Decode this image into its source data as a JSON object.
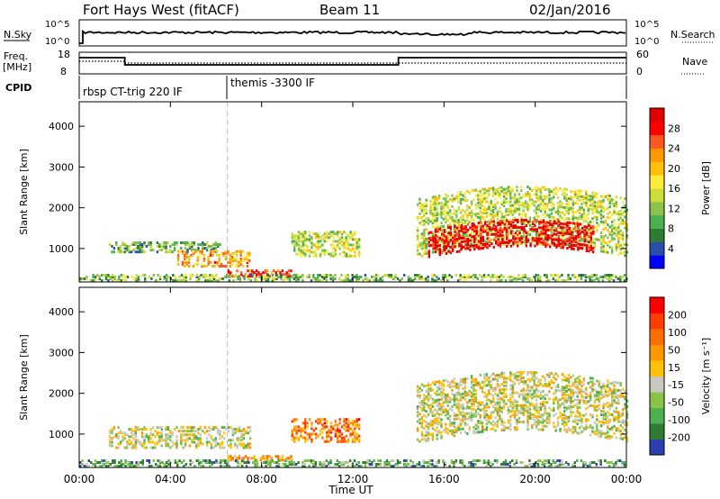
{
  "header": {
    "station": "Fort Hays West (fitACF)",
    "beam": "Beam 11",
    "date": "02/Jan/2016"
  },
  "top_panels": {
    "nsky_label": "N.Sky",
    "nsearch_label": "N.Search",
    "nsky_ticks": [
      "10^5",
      "10^0"
    ],
    "nsearch_ticks": [
      "10^5",
      "10^0"
    ],
    "freq_label_1": "Freq.",
    "freq_label_2": "[MHz]",
    "freq_ticks": [
      "18",
      "8"
    ],
    "nave_label": "Nave",
    "nave_ticks": [
      "60",
      "0"
    ],
    "cpid_label": "CPID",
    "cpid_segments": [
      {
        "label": "rbsp CT-trig 220 IF",
        "start_hour": 0
      },
      {
        "label": "themis -3300 IF",
        "start_hour": 6.5
      }
    ]
  },
  "colors": {
    "power_scale": [
      "#0000ff",
      "#2a4fa8",
      "#2e7d32",
      "#4caf50",
      "#8bc34a",
      "#cddc39",
      "#ffeb3b",
      "#ffc107",
      "#ff9800",
      "#ff5722",
      "#ff0000",
      "#e00000"
    ],
    "velocity_scale": [
      "#2b3fb0",
      "#2e7d32",
      "#4caf50",
      "#8bc34a",
      "#c8c8c0",
      "#ffc107",
      "#ff9800",
      "#ff6f00",
      "#ff3d00",
      "#ff0000"
    ]
  },
  "chart_data": [
    {
      "type": "heatmap",
      "name": "power",
      "ylabel": "Slant Range [km]",
      "colorbar_label": "Power [dB]",
      "colorbar_ticks": [
        "28",
        "24",
        "20",
        "16",
        "12",
        "8",
        "4"
      ],
      "x_ticks": [
        "00:00",
        "04:00",
        "08:00",
        "12:00",
        "16:00",
        "20:00",
        "00:00"
      ],
      "y_ticks": [
        "4000",
        "3000",
        "2000",
        "1000"
      ],
      "xlim": [
        0,
        24
      ],
      "ylim": [
        180,
        4600
      ],
      "regions": [
        {
          "t0": 1.3,
          "t1": 6.2,
          "r0": 950,
          "r1": 1200,
          "level": 0.3
        },
        {
          "t0": 4.3,
          "t1": 7.5,
          "r0": 600,
          "r1": 1000,
          "level": 0.65
        },
        {
          "t0": 9.3,
          "t1": 12.3,
          "r0": 850,
          "r1": 1450,
          "level": 0.45
        },
        {
          "t0": 6.5,
          "t1": 9.3,
          "r0": 350,
          "r1": 500,
          "level": 0.85
        },
        {
          "t0": 0,
          "t1": 24,
          "r0": 200,
          "r1": 400,
          "level": 0.35
        },
        {
          "t0": 14.8,
          "t1": 24,
          "r0": 1100,
          "r1": 2500,
          "level": 0.45
        },
        {
          "t0": 15.3,
          "t1": 22.5,
          "r0": 1050,
          "r1": 1700,
          "level": 0.95
        }
      ]
    },
    {
      "type": "heatmap",
      "name": "velocity",
      "ylabel": "Slant Range [km]",
      "colorbar_label": "Velocity [m s⁻¹]",
      "colorbar_ticks": [
        "200",
        "100",
        "50",
        "15",
        "-15",
        "-50",
        "-100",
        "-200"
      ],
      "x_ticks": [
        "00:00",
        "04:00",
        "08:00",
        "12:00",
        "16:00",
        "20:00",
        "00:00"
      ],
      "y_ticks": [
        "4000",
        "3000",
        "2000",
        "1000"
      ],
      "xlim": [
        0,
        24
      ],
      "ylim": [
        180,
        4600
      ],
      "xlabel": "Time UT",
      "regions": [
        {
          "t0": 1.3,
          "t1": 7.5,
          "r0": 700,
          "r1": 1200,
          "level": 0.45
        },
        {
          "t0": 9.3,
          "t1": 12.3,
          "r0": 850,
          "r1": 1400,
          "level": 0.72
        },
        {
          "t0": 6.5,
          "t1": 9.3,
          "r0": 350,
          "r1": 500,
          "level": 0.6
        },
        {
          "t0": 0,
          "t1": 24,
          "r0": 200,
          "r1": 400,
          "level": 0.25
        },
        {
          "t0": 14.8,
          "t1": 24,
          "r0": 1100,
          "r1": 2500,
          "level": 0.45
        }
      ]
    }
  ]
}
